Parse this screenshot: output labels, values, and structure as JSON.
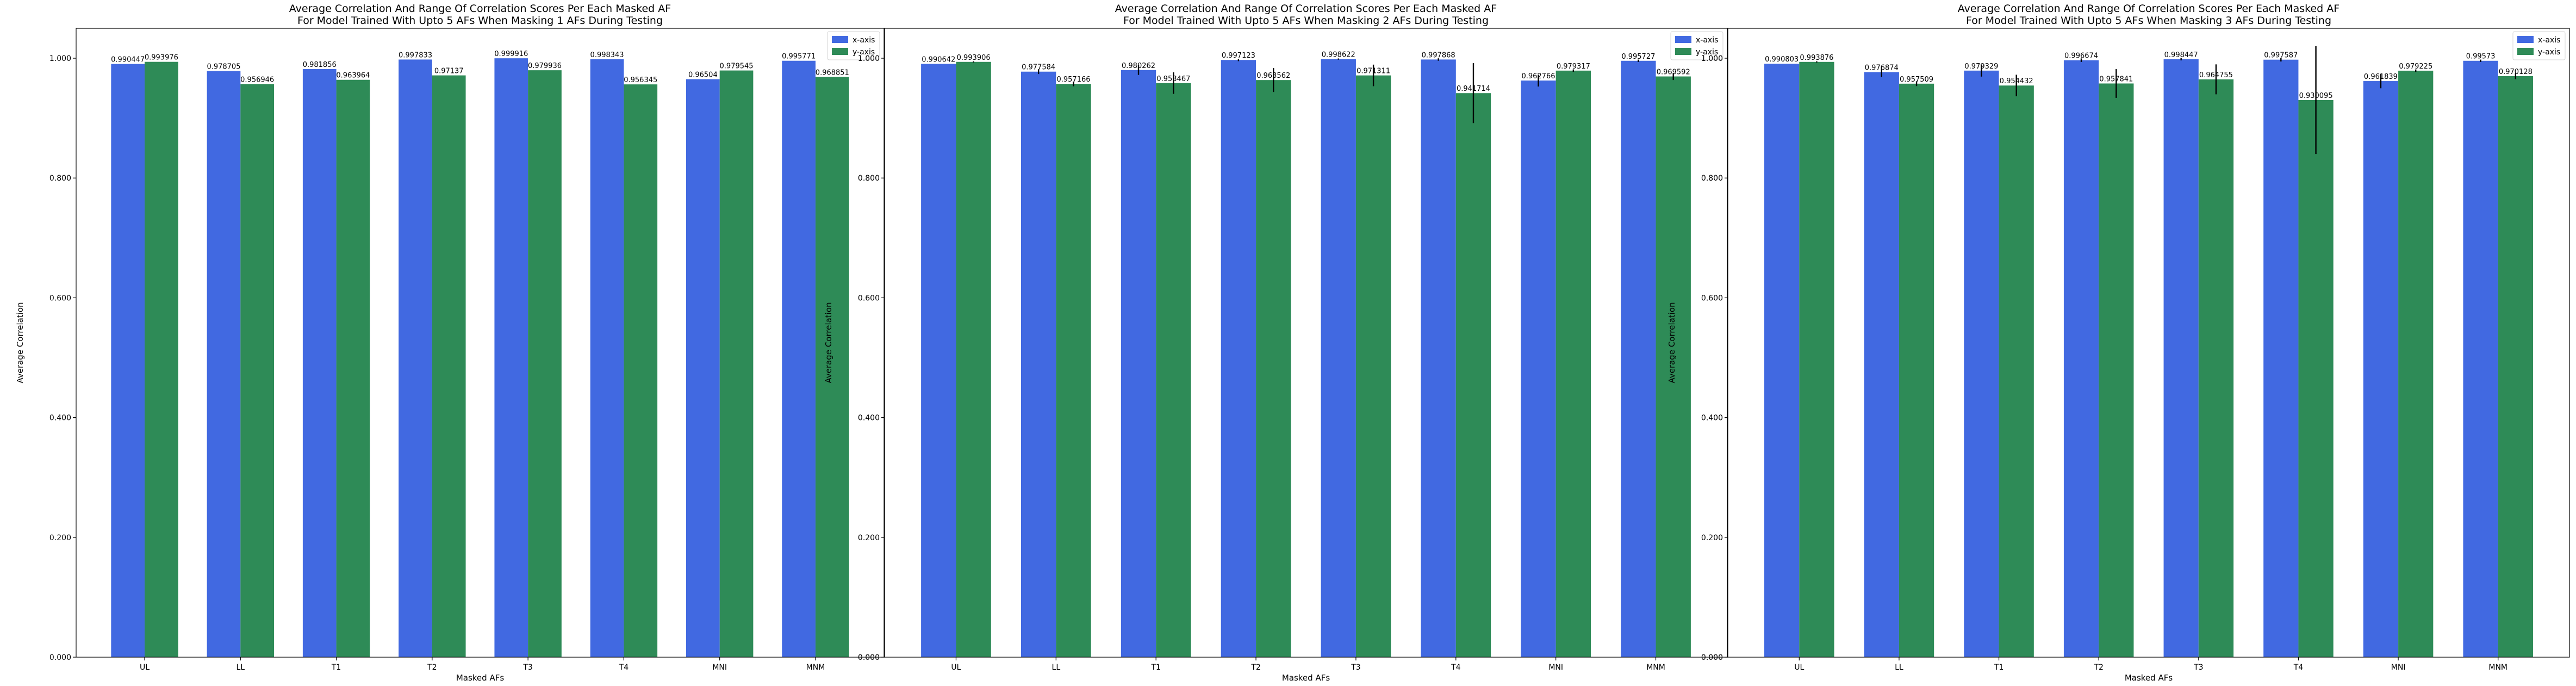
{
  "colors": {
    "x_series": "#4169e1",
    "y_series": "#2e8b57",
    "error_bar": "#000000"
  },
  "chart_data": [
    {
      "type": "bar",
      "title": "Average Correlation And Range Of Correlation Scores Per Each Masked AF",
      "subtitle": "For Model Trained With Upto 5 AFs When Masking 1 AFs During Testing",
      "xlabel": "Masked AFs",
      "ylabel": "Average Correlation",
      "ylim": [
        0,
        1.05
      ],
      "yticks": [
        "0.000",
        "0.200",
        "0.400",
        "0.600",
        "0.800",
        "1.000"
      ],
      "categories": [
        "UL",
        "LL",
        "T1",
        "T2",
        "T3",
        "T4",
        "MNI",
        "MNM"
      ],
      "legend_position": "top-right",
      "series": [
        {
          "name": "x-axis",
          "values": [
            0.990447,
            0.978705,
            0.981856,
            0.997833,
            0.999916,
            0.998343,
            0.96504,
            0.995771
          ],
          "labels": [
            "0.990447",
            "0.978705",
            "0.981856",
            "0.997833",
            "0.999916",
            "0.998343",
            "0.96504",
            "0.995771"
          ],
          "error": [
            0,
            0,
            0,
            0,
            0,
            0,
            0,
            0
          ]
        },
        {
          "name": "y-axis",
          "values": [
            0.993976,
            0.956946,
            0.963964,
            0.97137,
            0.979936,
            0.956345,
            0.979545,
            0.968851
          ],
          "labels": [
            "0.993976",
            "0.956946",
            "0.963964",
            "0.97137",
            "0.979936",
            "0.956345",
            "0.979545",
            "0.968851"
          ],
          "error": [
            0,
            0,
            0,
            0,
            0,
            0,
            0,
            0
          ]
        }
      ]
    },
    {
      "type": "bar",
      "title": "Average Correlation And Range Of Correlation Scores Per Each Masked AF",
      "subtitle": "For Model Trained With Upto 5 AFs When Masking 2 AFs During Testing",
      "xlabel": "Masked AFs",
      "ylabel": "Average Correlation",
      "ylim": [
        0,
        1.05
      ],
      "yticks": [
        "0.000",
        "0.200",
        "0.400",
        "0.600",
        "0.800",
        "1.000"
      ],
      "categories": [
        "UL",
        "LL",
        "T1",
        "T2",
        "T3",
        "T4",
        "MNI",
        "MNM"
      ],
      "legend_position": "top-right",
      "series": [
        {
          "name": "x-axis",
          "values": [
            0.990642,
            0.977584,
            0.980262,
            0.997123,
            0.998622,
            0.997868,
            0.962766,
            0.995727
          ],
          "labels": [
            "0.990642",
            "0.977584",
            "0.980262",
            "0.997123",
            "0.998622",
            "0.997868",
            "0.962766",
            "0.995727"
          ],
          "error": [
            0,
            0.004,
            0.008,
            0.002,
            0.001,
            0.002,
            0.01,
            0.002
          ]
        },
        {
          "name": "y-axis",
          "values": [
            0.993906,
            0.957166,
            0.958467,
            0.963562,
            0.971311,
            0.941714,
            0.979317,
            0.969592
          ],
          "labels": [
            "0.993906",
            "0.957166",
            "0.958467",
            "0.963562",
            "0.971311",
            "0.941714",
            "0.979317",
            "0.969592"
          ],
          "error": [
            0.001,
            0.004,
            0.018,
            0.02,
            0.018,
            0.05,
            0.002,
            0.006
          ]
        }
      ]
    },
    {
      "type": "bar",
      "title": "Average Correlation And Range Of Correlation Scores Per Each Masked AF",
      "subtitle": "For Model Trained With Upto 5 AFs When Masking 3 AFs During Testing",
      "xlabel": "Masked AFs",
      "ylabel": "Average Correlation",
      "ylim": [
        0,
        1.05
      ],
      "yticks": [
        "0.000",
        "0.200",
        "0.400",
        "0.600",
        "0.800",
        "1.000"
      ],
      "categories": [
        "UL",
        "LL",
        "T1",
        "T2",
        "T3",
        "T4",
        "MNI",
        "MNM"
      ],
      "legend_position": "top-right",
      "series": [
        {
          "name": "x-axis",
          "values": [
            0.990803,
            0.976874,
            0.979329,
            0.996674,
            0.998447,
            0.997587,
            0.961839,
            0.99573
          ],
          "labels": [
            "0.990803",
            "0.976874",
            "0.979329",
            "0.996674",
            "0.998447",
            "0.997587",
            "0.961839",
            "0.99573"
          ],
          "error": [
            0,
            0.008,
            0.01,
            0.003,
            0.002,
            0.003,
            0.012,
            0.002
          ]
        },
        {
          "name": "y-axis",
          "values": [
            0.993876,
            0.957509,
            0.954432,
            0.957841,
            0.964755,
            0.930095,
            0.979225,
            0.970128
          ],
          "labels": [
            "0.993876",
            "0.957509",
            "0.954432",
            "0.957841",
            "0.964755",
            "0.930095",
            "0.979225",
            "0.970128"
          ],
          "error": [
            0.001,
            0.004,
            0.018,
            0.024,
            0.025,
            0.09,
            0.002,
            0.005
          ]
        }
      ]
    }
  ]
}
